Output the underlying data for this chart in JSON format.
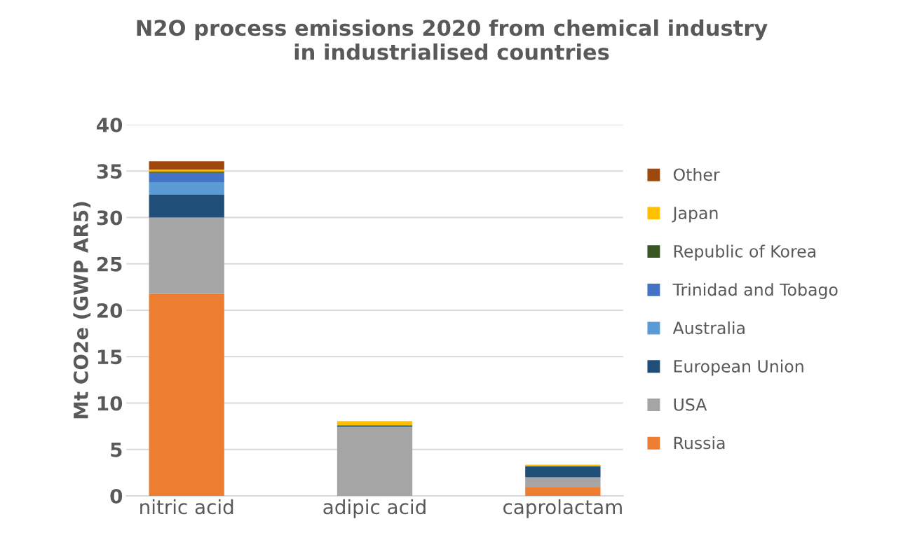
{
  "chart_data": {
    "type": "bar",
    "stacked": true,
    "title": "N2O process emissions 2020 from chemical industry\nin industrialised countries",
    "ylabel": "Mt CO2e (GWP AR5)",
    "categories": [
      "nitric acid",
      "adipic acid",
      "caprolactam"
    ],
    "series": [
      {
        "name": "Russia",
        "color": "#ed7d31",
        "values": [
          21.75,
          0,
          0.9
        ]
      },
      {
        "name": "USA",
        "color": "#a5a5a5",
        "values": [
          8.25,
          7.45,
          1.1
        ]
      },
      {
        "name": "European Union",
        "color": "#1f4e79",
        "values": [
          2.45,
          0.15,
          1.2
        ]
      },
      {
        "name": "Australia",
        "color": "#5b9bd5",
        "values": [
          1.35,
          0,
          0
        ]
      },
      {
        "name": "Trinidad and Tobago",
        "color": "#4472c4",
        "values": [
          1.0,
          0,
          0
        ]
      },
      {
        "name": "Republic of Korea",
        "color": "#375623",
        "values": [
          0.15,
          0,
          0
        ]
      },
      {
        "name": "Japan",
        "color": "#ffc000",
        "values": [
          0.2,
          0.45,
          0.15
        ]
      },
      {
        "name": "Other",
        "color": "#9e480e",
        "values": [
          0.9,
          0,
          0
        ]
      }
    ],
    "ylim": [
      0,
      40
    ],
    "yticks": [
      0,
      5,
      10,
      15,
      20,
      25,
      30,
      35,
      40
    ],
    "grid": "y",
    "legend": "right"
  }
}
